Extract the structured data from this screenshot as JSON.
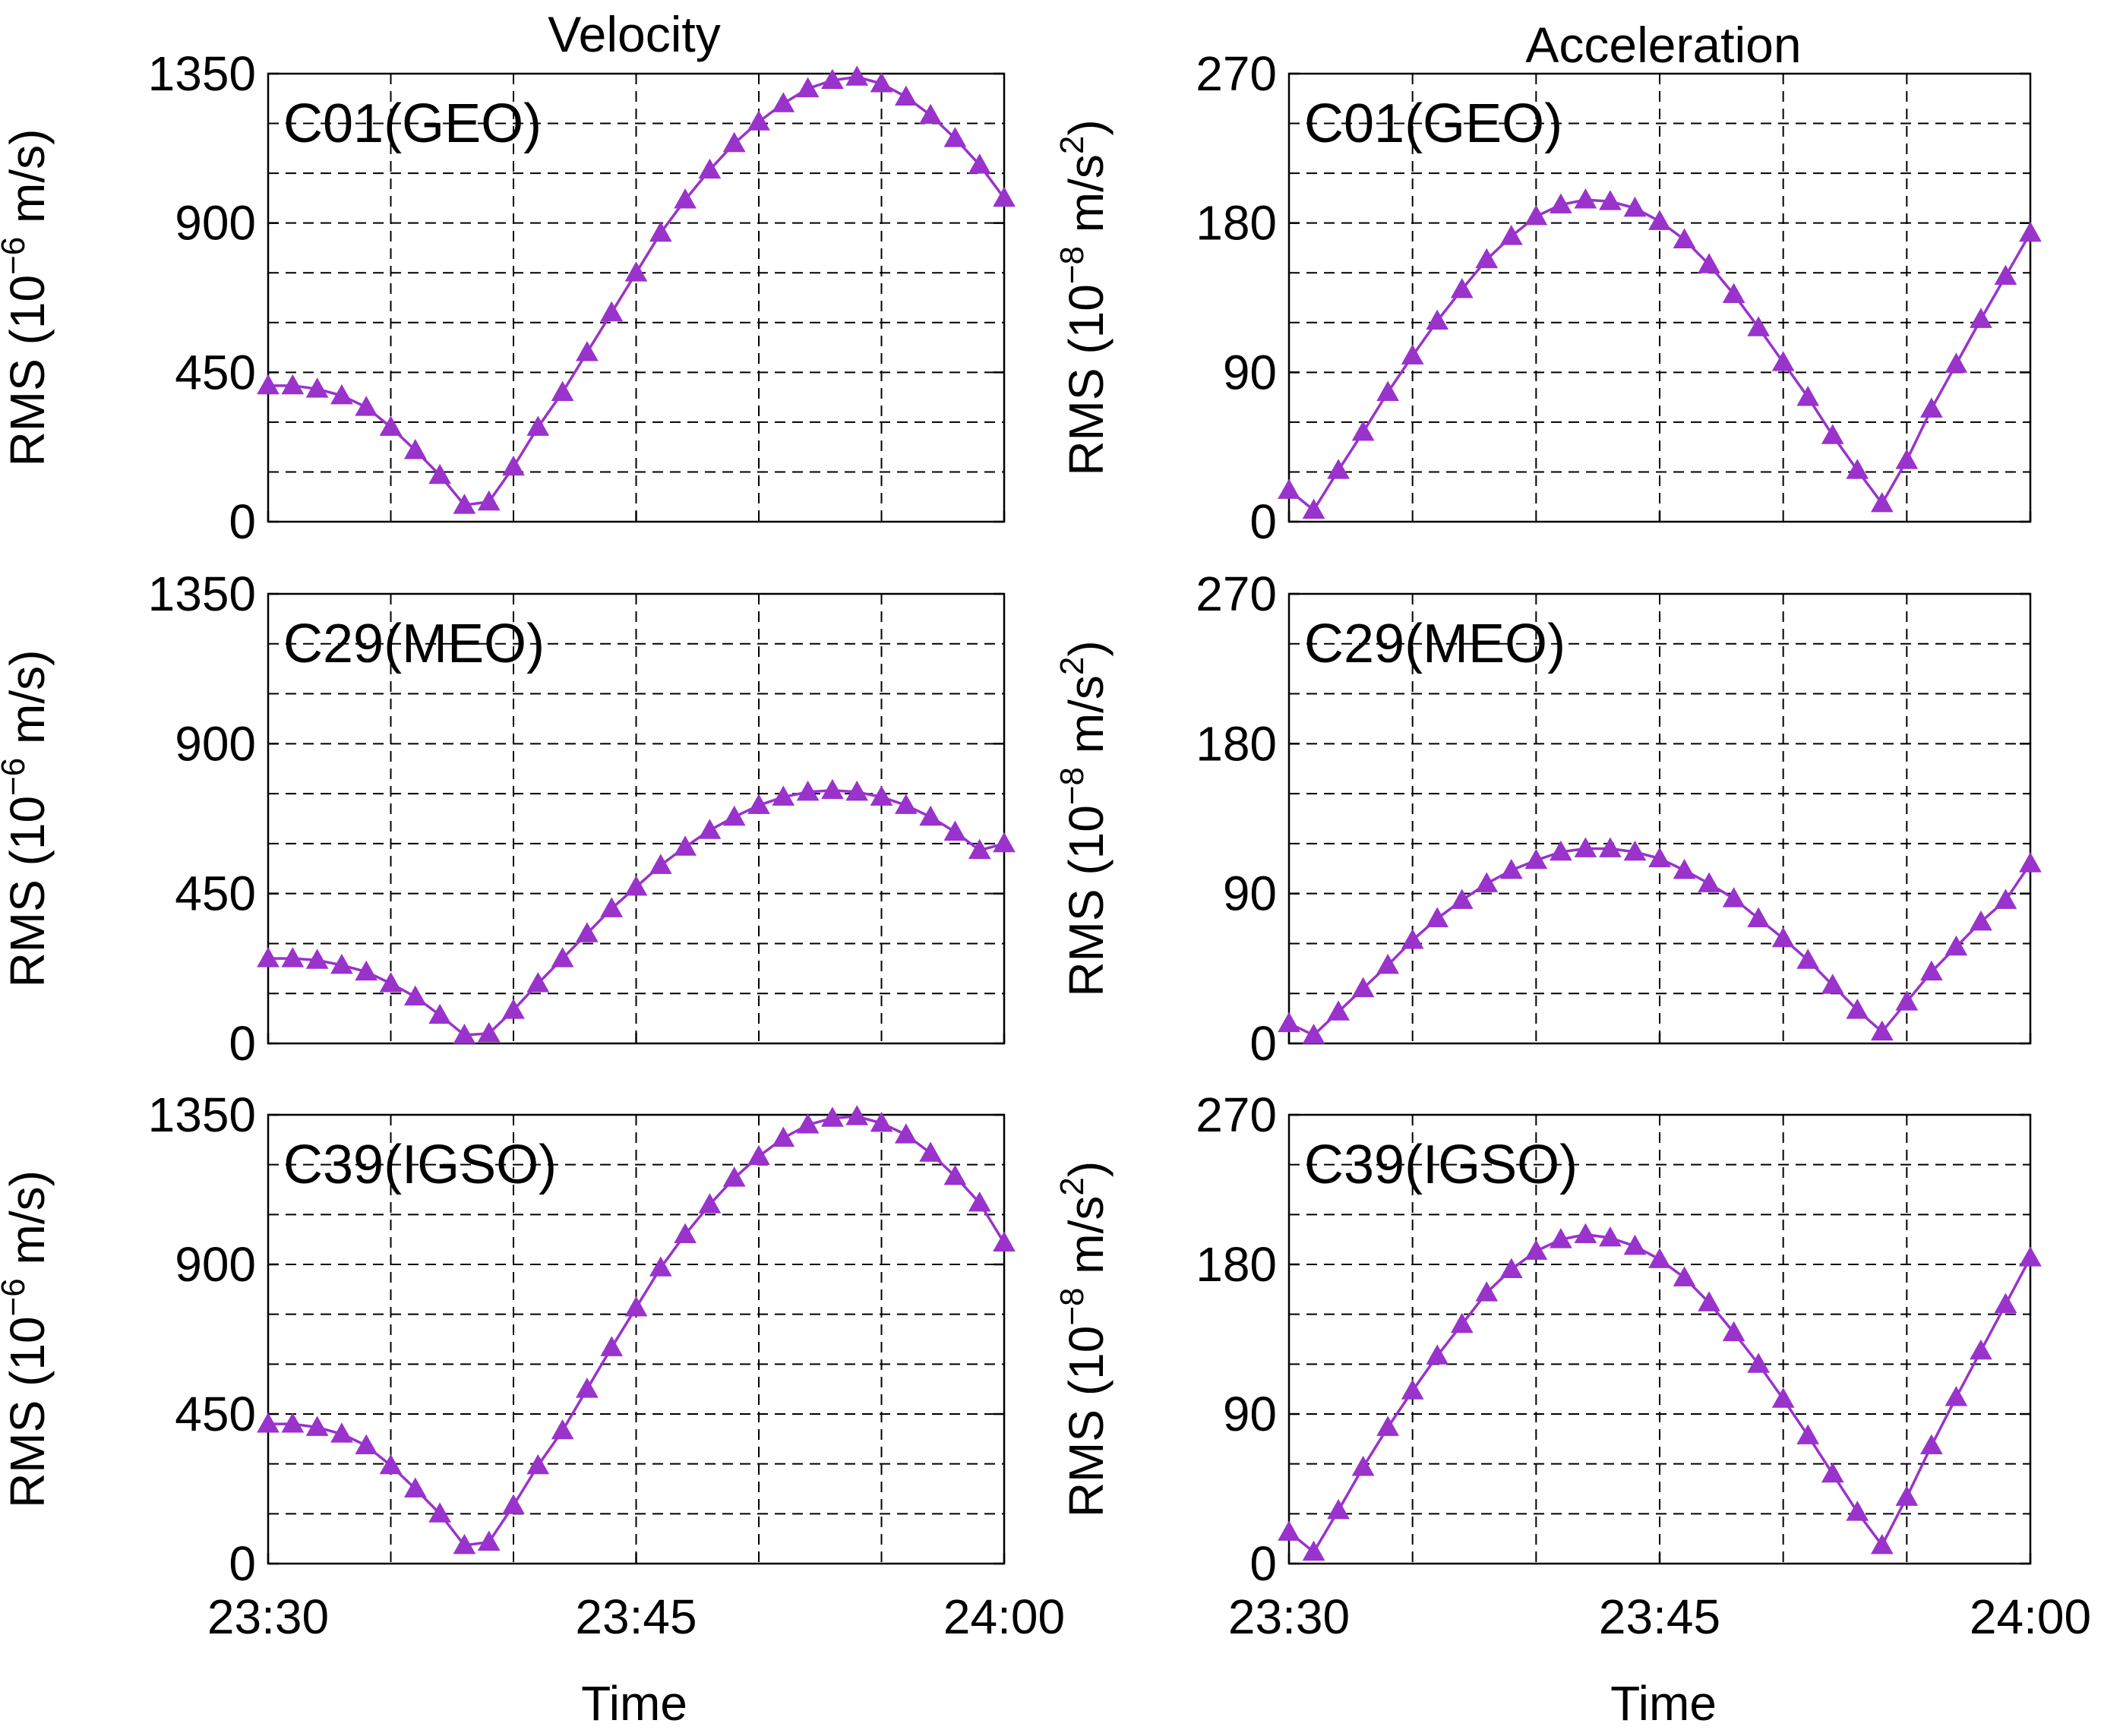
{
  "chart_data": {
    "type": "line",
    "layout": "3 rows x 2 columns",
    "columns": [
      "Velocity",
      "Acceleration"
    ],
    "series_color": "#9933CC",
    "marker": "triangle",
    "x": {
      "label": "Time",
      "range": [
        0,
        30
      ],
      "tick_values": [
        0,
        15,
        30
      ],
      "tick_labels": [
        "23:30",
        "23:45",
        "24:00"
      ],
      "grid_step_minutes": 5,
      "sample_minutes": [
        0,
        1,
        2,
        3,
        4,
        5,
        6,
        7,
        8,
        9,
        10,
        11,
        12,
        13,
        14,
        15,
        16,
        17,
        18,
        19,
        20,
        21,
        22,
        23,
        24,
        25,
        26,
        27,
        28,
        29,
        30
      ]
    },
    "velocity_axis": {
      "ylabel_main": "RMS (10",
      "ylabel_exp": "−6",
      "ylabel_unit": " m/s)",
      "ylim": [
        0,
        1350
      ],
      "tick_values": [
        0,
        450,
        900,
        1350
      ],
      "tick_labels": [
        "0",
        "450",
        "900",
        "1350"
      ],
      "grid_step": 150
    },
    "acceleration_axis": {
      "ylabel_main": "RMS (10",
      "ylabel_exp": "−8",
      "ylabel_unit": " m/s",
      "ylabel_sq": "2",
      "ylabel_close": ")",
      "ylim": [
        0,
        270
      ],
      "tick_values": [
        0,
        90,
        180,
        270
      ],
      "tick_labels": [
        "0",
        "90",
        "180",
        "270"
      ],
      "grid_step": 30
    },
    "panels": [
      {
        "label": "C01(GEO)",
        "quantity": "velocity",
        "values": [
          410,
          410,
          400,
          380,
          345,
          285,
          215,
          140,
          50,
          60,
          165,
          285,
          390,
          510,
          630,
          750,
          870,
          970,
          1060,
          1140,
          1205,
          1260,
          1305,
          1330,
          1340,
          1320,
          1280,
          1225,
          1155,
          1075,
          975
        ]
      },
      {
        "label": "C01(GEO)",
        "quantity": "acceleration",
        "values": [
          19,
          7,
          31,
          54,
          78,
          100,
          121,
          140,
          158,
          172,
          184,
          191,
          194,
          193,
          189,
          181,
          170,
          155,
          137,
          117,
          96,
          75,
          52,
          31,
          11,
          37,
          68,
          95,
          122,
          148,
          174
        ]
      },
      {
        "label": "C29(MEO)",
        "quantity": "velocity",
        "values": [
          255,
          255,
          250,
          235,
          215,
          180,
          140,
          85,
          25,
          30,
          100,
          180,
          255,
          330,
          405,
          470,
          535,
          590,
          640,
          680,
          715,
          740,
          755,
          760,
          755,
          740,
          715,
          680,
          635,
          580,
          600
        ]
      },
      {
        "label": "C29(MEO)",
        "quantity": "acceleration",
        "values": [
          12,
          5,
          19,
          33,
          47,
          62,
          75,
          86,
          96,
          104,
          110,
          115,
          117,
          117,
          115,
          111,
          104,
          96,
          87,
          75,
          63,
          50,
          35,
          20,
          7,
          25,
          43,
          58,
          73,
          86,
          108
        ]
      },
      {
        "label": "C39(IGSO)",
        "quantity": "velocity",
        "values": [
          420,
          420,
          410,
          390,
          355,
          295,
          225,
          150,
          55,
          65,
          175,
          295,
          400,
          525,
          650,
          770,
          890,
          990,
          1080,
          1160,
          1225,
          1280,
          1320,
          1340,
          1345,
          1325,
          1290,
          1235,
          1165,
          1085,
          965
        ]
      },
      {
        "label": "C39(IGSO)",
        "quantity": "acceleration",
        "values": [
          19,
          7,
          32,
          58,
          82,
          104,
          125,
          144,
          163,
          177,
          188,
          195,
          198,
          196,
          191,
          183,
          172,
          157,
          139,
          120,
          99,
          77,
          54,
          31,
          11,
          40,
          71,
          100,
          128,
          156,
          184
        ]
      }
    ]
  }
}
